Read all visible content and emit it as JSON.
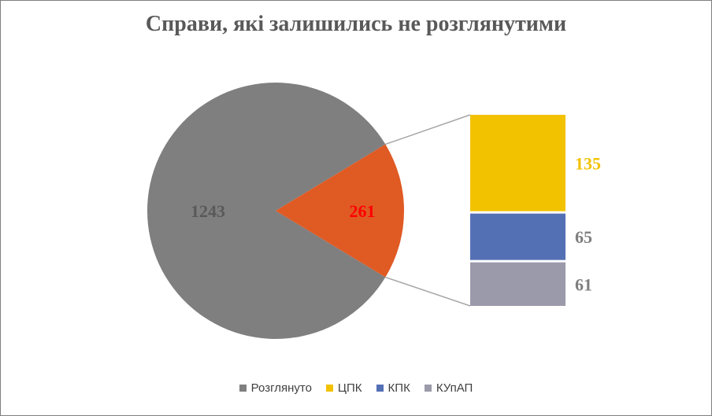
{
  "chart_data": {
    "type": "pie",
    "title": "Справи, які залишились не розглянутими",
    "pie": {
      "slices": [
        {
          "name": "Розглянуто",
          "value": 1243,
          "color": "#7f7f7f",
          "label_color": "#595959"
        },
        {
          "name": "",
          "value": 261,
          "color": "#e05a24",
          "label_color": "#ff0000"
        }
      ]
    },
    "breakdown": {
      "type": "stacked-bar",
      "of_slice": 261,
      "segments": [
        {
          "name": "ЦПК",
          "value": 135,
          "color": "#f2c200",
          "label_color": "#f2c200"
        },
        {
          "name": "КПК",
          "value": 65,
          "color": "#5470b5",
          "label_color": "#7f7f7f"
        },
        {
          "name": "КУпАП",
          "value": 61,
          "color": "#9a9aaa",
          "label_color": "#7f7f7f"
        }
      ]
    },
    "legend": {
      "position": "bottom",
      "entries": [
        {
          "name": "Розглянуто",
          "color": "#7f7f7f"
        },
        {
          "name": "ЦПК",
          "color": "#f2c200"
        },
        {
          "name": "КПК",
          "color": "#5470b5"
        },
        {
          "name": "КУпАП",
          "color": "#9a9aaa"
        }
      ]
    }
  }
}
